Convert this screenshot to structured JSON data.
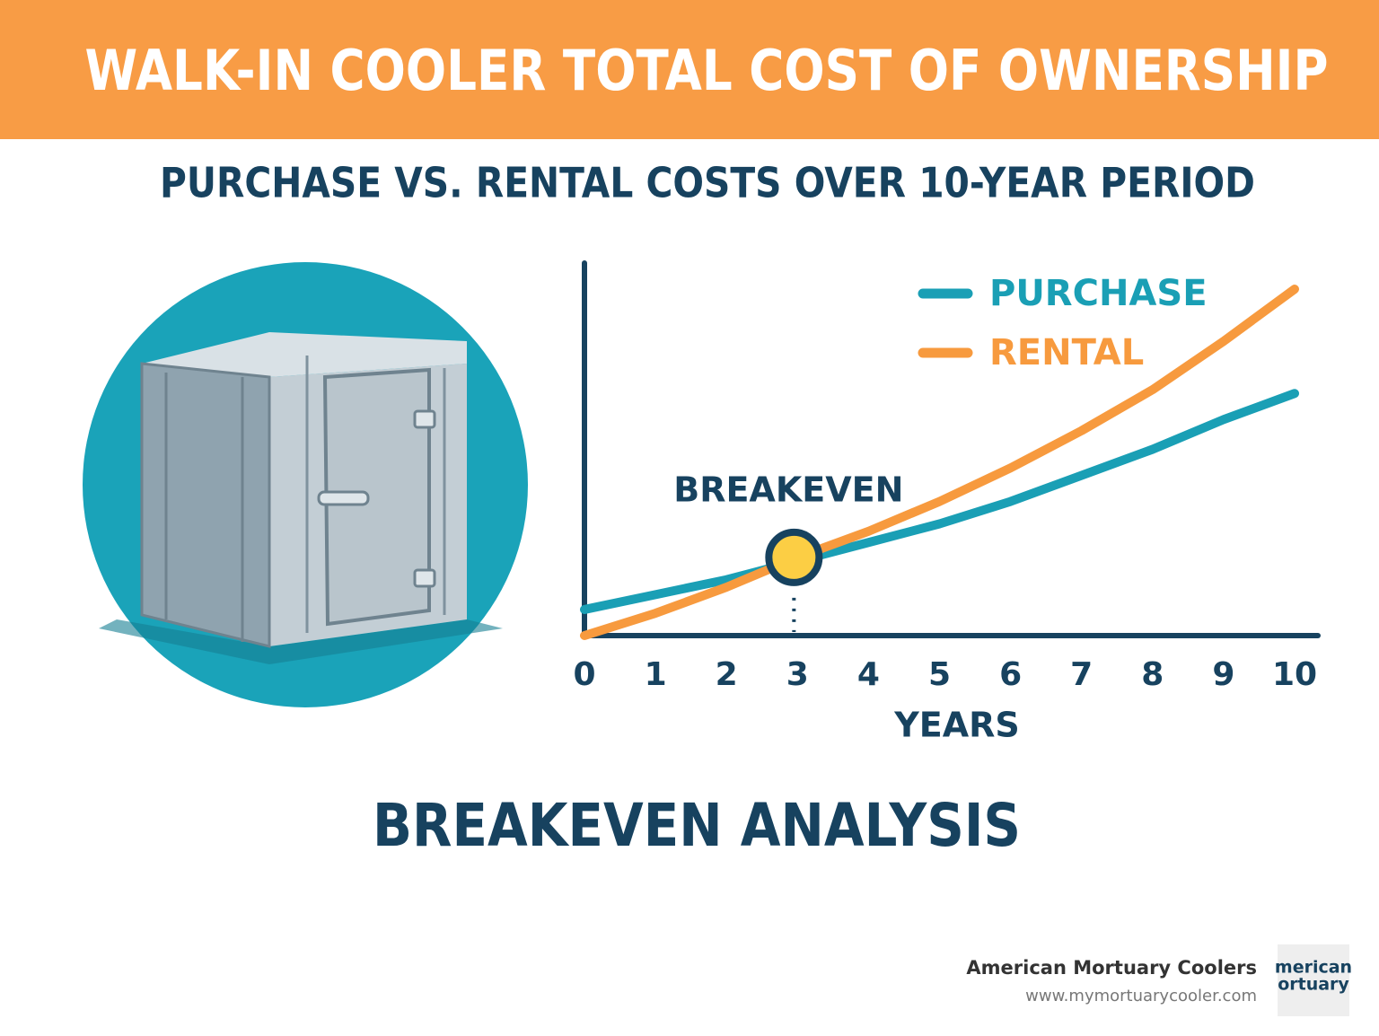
{
  "header": {
    "title": "WALK-IN COOLER TOTAL COST OF OWNERSHIP"
  },
  "chart_data": {
    "type": "line",
    "title": "PURCHASE VS. RENTAL COSTS OVER 10-YEAR PERIOD",
    "x": [
      0,
      1,
      2,
      3,
      4,
      5,
      6,
      7,
      8,
      9,
      10
    ],
    "series": [
      {
        "name": "PURCHASE",
        "color": "#1a9fb5",
        "values": [
          7,
          11,
          15,
          20,
          25,
          30,
          36,
          43,
          50,
          58,
          65
        ]
      },
      {
        "name": "RENTAL",
        "color": "#f79a3e",
        "values": [
          0,
          6,
          13,
          21,
          28,
          36,
          45,
          55,
          66,
          79,
          93
        ]
      }
    ],
    "xlim": [
      0,
      10
    ],
    "xticks": [
      0,
      1,
      2,
      3,
      4,
      5,
      6,
      7,
      8,
      9,
      10
    ],
    "ylim": [
      0,
      100
    ],
    "x_label": "YEARS",
    "legend": "top-right",
    "annotation": {
      "label": "BREAKEVEN",
      "x": 2.95,
      "y": 21
    }
  },
  "footer": {
    "heading": "BREAKEVEN ANALYSIS",
    "brand": "American Mortuary Coolers",
    "url": "www.mymortuarycooler.com",
    "logo": [
      "merican",
      "ortuary"
    ]
  }
}
